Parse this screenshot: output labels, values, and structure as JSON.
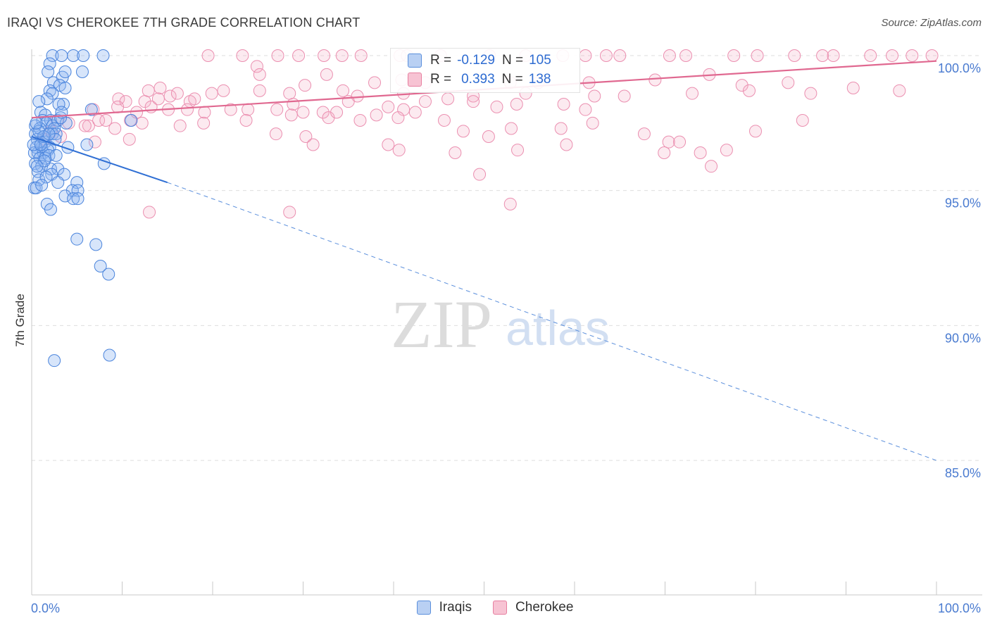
{
  "title": "IRAQI VS CHEROKEE 7TH GRADE CORRELATION CHART",
  "source": "Source: ZipAtlas.com",
  "watermark": {
    "zip": "ZIP",
    "atlas": "atlas"
  },
  "legend": {
    "r_label": "R =",
    "n_label": "N =",
    "series": [
      {
        "name": "Iraqis",
        "r": "-0.129",
        "n": "105",
        "color": "#5b8fdc",
        "fill": "#b9d0f3"
      },
      {
        "name": "Cherokee",
        "r": "0.393",
        "n": "138",
        "color": "#e77fa0",
        "fill": "#f7c3d3"
      }
    ]
  },
  "chart_data": {
    "type": "scatter",
    "title": "IRAQI VS CHEROKEE 7TH GRADE CORRELATION CHART",
    "xlabel": "",
    "ylabel": "7th Grade",
    "xlim": [
      0,
      100
    ],
    "ylim": [
      80.0,
      100.5
    ],
    "x_tick_labels": [
      "0.0%",
      "100.0%"
    ],
    "y_ticks": [
      {
        "value": 100,
        "label": "100.0%"
      },
      {
        "value": 95,
        "label": "95.0%"
      },
      {
        "value": 90,
        "label": "90.0%"
      },
      {
        "value": 85,
        "label": "85.0%"
      }
    ],
    "series": [
      {
        "name": "Iraqis",
        "color": "#3d7ad8",
        "trend": {
          "x0": 0,
          "y0": 97.0,
          "x1": 15,
          "y1": 95.3,
          "dash_to_x": 100,
          "dash_to_y": 85.0
        },
        "points": [
          [
            2.3,
            100
          ],
          [
            3.3,
            100
          ],
          [
            4.6,
            100
          ],
          [
            5.7,
            100
          ],
          [
            7.9,
            100
          ],
          [
            2.0,
            99.7
          ],
          [
            3.4,
            99.2
          ],
          [
            3.7,
            99.4
          ],
          [
            5.6,
            99.4
          ],
          [
            1.8,
            99.4
          ],
          [
            2.4,
            99.0
          ],
          [
            3.1,
            98.9
          ],
          [
            3.7,
            98.8
          ],
          [
            2.0,
            98.7
          ],
          [
            2.3,
            98.6
          ],
          [
            1.7,
            98.4
          ],
          [
            0.8,
            98.3
          ],
          [
            3.5,
            98.2
          ],
          [
            3.0,
            98.2
          ],
          [
            6.6,
            98.0
          ],
          [
            1.0,
            97.9
          ],
          [
            1.5,
            97.8
          ],
          [
            1.2,
            97.6
          ],
          [
            2.1,
            97.6
          ],
          [
            1.6,
            97.5
          ],
          [
            2.3,
            97.4
          ],
          [
            2.9,
            97.6
          ],
          [
            3.8,
            97.5
          ],
          [
            11.0,
            97.6
          ],
          [
            0.4,
            97.4
          ],
          [
            0.9,
            97.3
          ],
          [
            2.5,
            97.3
          ],
          [
            0.4,
            97.1
          ],
          [
            1.4,
            97.0
          ],
          [
            2.3,
            97.1
          ],
          [
            2.7,
            97.1
          ],
          [
            0.6,
            96.9
          ],
          [
            1.5,
            96.8
          ],
          [
            2.6,
            96.9
          ],
          [
            1.1,
            96.6
          ],
          [
            0.5,
            96.6
          ],
          [
            2.0,
            96.6
          ],
          [
            4.0,
            96.6
          ],
          [
            6.1,
            96.7
          ],
          [
            0.7,
            96.4
          ],
          [
            1.3,
            96.4
          ],
          [
            1.8,
            96.5
          ],
          [
            0.3,
            96.4
          ],
          [
            0.9,
            96.2
          ],
          [
            1.5,
            96.2
          ],
          [
            1.9,
            96.3
          ],
          [
            0.4,
            96.0
          ],
          [
            1.1,
            95.9
          ],
          [
            2.1,
            95.8
          ],
          [
            2.9,
            95.8
          ],
          [
            8.0,
            96.0
          ],
          [
            0.7,
            95.7
          ],
          [
            2.2,
            95.6
          ],
          [
            3.6,
            95.6
          ],
          [
            0.8,
            95.4
          ],
          [
            1.6,
            95.5
          ],
          [
            2.9,
            95.3
          ],
          [
            5.0,
            95.3
          ],
          [
            0.3,
            95.1
          ],
          [
            0.5,
            95.1
          ],
          [
            4.5,
            95.0
          ],
          [
            5.1,
            95.0
          ],
          [
            1.1,
            95.2
          ],
          [
            3.7,
            94.8
          ],
          [
            4.6,
            94.7
          ],
          [
            5.1,
            94.7
          ],
          [
            1.7,
            94.5
          ],
          [
            2.1,
            94.3
          ],
          [
            5.0,
            93.2
          ],
          [
            7.1,
            93.0
          ],
          [
            7.6,
            92.2
          ],
          [
            8.5,
            91.9
          ],
          [
            2.5,
            88.7
          ],
          [
            8.6,
            88.9
          ],
          [
            1.3,
            97.0
          ],
          [
            0.8,
            97.2
          ],
          [
            1.9,
            97.1
          ],
          [
            0.5,
            97.5
          ],
          [
            3.2,
            97.7
          ],
          [
            0.2,
            96.7
          ],
          [
            1.4,
            96.1
          ],
          [
            2.7,
            96.3
          ],
          [
            0.6,
            95.9
          ],
          [
            1.0,
            96.7
          ],
          [
            3.3,
            97.9
          ]
        ]
      },
      {
        "name": "Cherokee",
        "color": "#e06890",
        "trend": {
          "x0": 0,
          "y0": 97.7,
          "x1": 100,
          "y1": 99.8
        },
        "points": [
          [
            23.3,
            100
          ],
          [
            27.2,
            100
          ],
          [
            32.3,
            100
          ],
          [
            34.3,
            100
          ],
          [
            36.4,
            100
          ],
          [
            40.7,
            100
          ],
          [
            45.2,
            100
          ],
          [
            50.6,
            100
          ],
          [
            54.6,
            100
          ],
          [
            58.7,
            100
          ],
          [
            61.2,
            100
          ],
          [
            63.5,
            100
          ],
          [
            65.0,
            100
          ],
          [
            70.5,
            100
          ],
          [
            72.3,
            100
          ],
          [
            77.6,
            100
          ],
          [
            80.2,
            100
          ],
          [
            84.3,
            100
          ],
          [
            87.4,
            100
          ],
          [
            92.7,
            100
          ],
          [
            95.1,
            100
          ],
          [
            97.3,
            100
          ],
          [
            99.5,
            100
          ],
          [
            41.5,
            100
          ],
          [
            19.5,
            100
          ],
          [
            24.9,
            99.6
          ],
          [
            25.2,
            99.3
          ],
          [
            32.6,
            99.3
          ],
          [
            37.9,
            99.0
          ],
          [
            40.9,
            99.1
          ],
          [
            43.5,
            99.0
          ],
          [
            52.9,
            99.0
          ],
          [
            56.0,
            99.0
          ],
          [
            61.6,
            99.0
          ],
          [
            68.9,
            99.1
          ],
          [
            74.9,
            99.3
          ],
          [
            83.6,
            99.0
          ],
          [
            88.6,
            100
          ],
          [
            29.5,
            100
          ],
          [
            14.2,
            98.8
          ],
          [
            15.3,
            98.5
          ],
          [
            16.1,
            98.6
          ],
          [
            17.5,
            98.3
          ],
          [
            19.9,
            98.6
          ],
          [
            21.2,
            98.7
          ],
          [
            25.2,
            98.7
          ],
          [
            28.5,
            98.6
          ],
          [
            30.2,
            98.9
          ],
          [
            34.4,
            98.7
          ],
          [
            36.0,
            98.5
          ],
          [
            41.1,
            98.6
          ],
          [
            46.0,
            98.4
          ],
          [
            48.8,
            98.5
          ],
          [
            54.6,
            98.6
          ],
          [
            62.2,
            98.5
          ],
          [
            65.5,
            98.5
          ],
          [
            73.0,
            98.6
          ],
          [
            78.5,
            98.9
          ],
          [
            79.3,
            98.7
          ],
          [
            86.1,
            98.6
          ],
          [
            90.8,
            98.8
          ],
          [
            95.9,
            98.7
          ],
          [
            9.6,
            98.4
          ],
          [
            10.4,
            98.3
          ],
          [
            12.5,
            98.3
          ],
          [
            13.2,
            98.1
          ],
          [
            15.1,
            98.0
          ],
          [
            17.2,
            98.0
          ],
          [
            19.1,
            97.9
          ],
          [
            22.0,
            98.0
          ],
          [
            23.9,
            98.0
          ],
          [
            27.1,
            98.0
          ],
          [
            28.9,
            98.2
          ],
          [
            30.0,
            97.9
          ],
          [
            32.2,
            97.9
          ],
          [
            35.0,
            98.3
          ],
          [
            39.4,
            98.1
          ],
          [
            41.1,
            98.0
          ],
          [
            43.5,
            98.3
          ],
          [
            48.8,
            98.3
          ],
          [
            51.4,
            98.1
          ],
          [
            53.6,
            98.2
          ],
          [
            58.8,
            98.2
          ],
          [
            61.2,
            98.0
          ],
          [
            4.1,
            97.5
          ],
          [
            6.3,
            97.4
          ],
          [
            7.4,
            97.6
          ],
          [
            9.2,
            97.3
          ],
          [
            10.9,
            97.6
          ],
          [
            12.2,
            97.5
          ],
          [
            16.4,
            97.4
          ],
          [
            19.0,
            97.5
          ],
          [
            23.7,
            97.6
          ],
          [
            28.7,
            97.8
          ],
          [
            32.8,
            97.7
          ],
          [
            33.7,
            97.9
          ],
          [
            36.3,
            97.6
          ],
          [
            38.1,
            97.8
          ],
          [
            40.5,
            97.7
          ],
          [
            42.4,
            97.9
          ],
          [
            45.6,
            97.6
          ],
          [
            47.7,
            97.2
          ],
          [
            50.5,
            97.0
          ],
          [
            53.0,
            97.3
          ],
          [
            58.5,
            97.3
          ],
          [
            62.0,
            97.5
          ],
          [
            67.7,
            97.1
          ],
          [
            70.4,
            96.8
          ],
          [
            73.9,
            96.4
          ],
          [
            76.8,
            96.5
          ],
          [
            80.0,
            97.2
          ],
          [
            85.2,
            97.6
          ],
          [
            27.0,
            97.1
          ],
          [
            30.3,
            97.0
          ],
          [
            31.1,
            96.7
          ],
          [
            39.4,
            96.7
          ],
          [
            40.6,
            96.5
          ],
          [
            46.8,
            96.4
          ],
          [
            53.7,
            96.5
          ],
          [
            59.1,
            96.7
          ],
          [
            69.9,
            96.4
          ],
          [
            71.6,
            96.8
          ],
          [
            10.8,
            96.9
          ],
          [
            7.0,
            96.8
          ],
          [
            3.2,
            97.0
          ],
          [
            2.1,
            97.2
          ],
          [
            1.4,
            96.9
          ],
          [
            49.5,
            95.6
          ],
          [
            75.1,
            95.9
          ],
          [
            13.0,
            94.2
          ],
          [
            28.5,
            94.2
          ],
          [
            52.9,
            94.5
          ],
          [
            2.8,
            97.6
          ],
          [
            5.9,
            97.4
          ],
          [
            8.2,
            97.6
          ],
          [
            11.6,
            97.9
          ],
          [
            14.0,
            98.4
          ],
          [
            6.8,
            98.0
          ],
          [
            9.5,
            98.1
          ],
          [
            12.9,
            98.7
          ],
          [
            18.0,
            98.4
          ]
        ]
      }
    ]
  }
}
